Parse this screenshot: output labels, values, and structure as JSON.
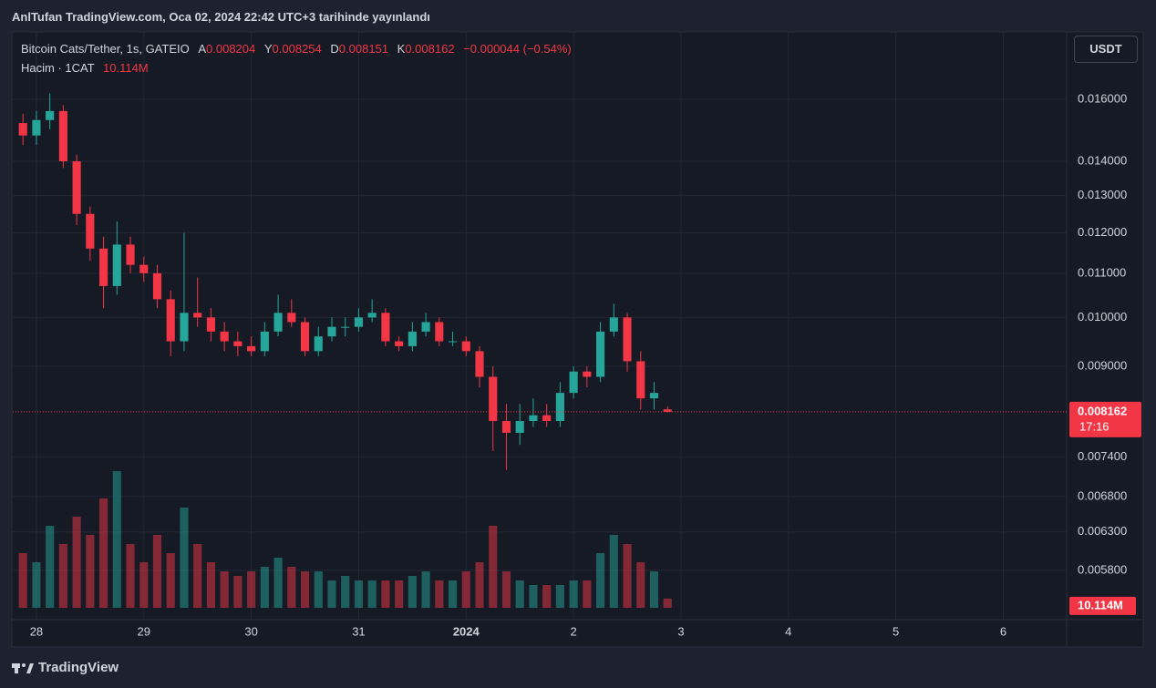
{
  "header": {
    "published": "AnlTufan TradingView.com, Oca 02, 2024 22:42 UTC+3 tarihinde yayınlandı",
    "currency": "USDT",
    "brand": "TradingView"
  },
  "chart_data": {
    "type": "candlestick",
    "symbol": "Bitcoin Cats/Tether, 1s, GATEIO",
    "ohlc_letters": [
      "A",
      "Y",
      "D",
      "K"
    ],
    "change": {
      "value": -4.4e-05,
      "label": "−0.000044"
    },
    "change_percent": {
      "value": -0.54,
      "label": "(−0.54%)"
    },
    "volume_title": "Hacim · 1CAT",
    "volume_label": "10.114M",
    "countdown": "17:16",
    "log_scale": true,
    "grid": true,
    "up_color": "#26a69a",
    "down_color": "#f23645",
    "xlim": [
      -0.22,
      9.59
    ],
    "xticks": [
      {
        "value": 0,
        "label": "28"
      },
      {
        "value": 1,
        "label": "29"
      },
      {
        "value": 2,
        "label": "30"
      },
      {
        "value": 3,
        "label": "31"
      },
      {
        "value": 4,
        "label": "2024"
      },
      {
        "value": 5,
        "label": "2"
      },
      {
        "value": 6,
        "label": "3"
      },
      {
        "value": 7,
        "label": "4"
      },
      {
        "value": 8,
        "label": "5"
      },
      {
        "value": 9,
        "label": "6"
      }
    ],
    "ylim": [
      0.00535,
      0.0185
    ],
    "yticks": [
      {
        "value": 0.016,
        "label": "0.016000"
      },
      {
        "value": 0.014,
        "label": "0.014000"
      },
      {
        "value": 0.013,
        "label": "0.013000"
      },
      {
        "value": 0.012,
        "label": "0.012000"
      },
      {
        "value": 0.011,
        "label": "0.011000"
      },
      {
        "value": 0.01,
        "label": "0.010000"
      },
      {
        "value": 0.009,
        "label": "0.009000"
      },
      {
        "value": 0.0074,
        "label": "0.007400"
      },
      {
        "value": 0.0068,
        "label": "0.006800"
      },
      {
        "value": 0.0063,
        "label": "0.006300"
      },
      {
        "value": 0.0058,
        "label": "0.005800"
      }
    ],
    "x": [
      -0.125,
      0,
      0.125,
      0.25,
      0.375,
      0.5,
      0.625,
      0.75,
      0.875,
      1,
      1.125,
      1.25,
      1.375,
      1.5,
      1.625,
      1.75,
      1.875,
      2,
      2.125,
      2.25,
      2.375,
      2.5,
      2.625,
      2.75,
      2.875,
      3,
      3.125,
      3.25,
      3.375,
      3.5,
      3.625,
      3.75,
      3.875,
      4,
      4.125,
      4.25,
      4.375,
      4.5,
      4.625,
      4.75,
      4.875,
      5,
      5.125,
      5.25,
      5.375,
      5.5,
      5.625,
      5.75,
      5.875
    ],
    "open": [
      0.0152,
      0.0148,
      0.0153,
      0.0156,
      0.014,
      0.0125,
      0.0116,
      0.0107,
      0.0117,
      0.0112,
      0.011,
      0.0104,
      0.0095,
      0.0101,
      0.01,
      0.0097,
      0.0095,
      0.0094,
      0.0093,
      0.0097,
      0.0101,
      0.0099,
      0.0093,
      0.0096,
      0.0098,
      0.0098,
      0.01,
      0.0101,
      0.0095,
      0.0094,
      0.0097,
      0.0099,
      0.0095,
      0.0095,
      0.0093,
      0.0088,
      0.008,
      0.0078,
      0.008,
      0.0081,
      0.008,
      0.0085,
      0.0089,
      0.0088,
      0.0097,
      0.01,
      0.0091,
      0.0084,
      0.008204
    ],
    "high": [
      0.0155,
      0.0156,
      0.0162,
      0.0158,
      0.0142,
      0.0127,
      0.0119,
      0.0123,
      0.0119,
      0.0114,
      0.0112,
      0.0106,
      0.012,
      0.0109,
      0.0102,
      0.0099,
      0.0097,
      0.0096,
      0.0099,
      0.0105,
      0.0104,
      0.01,
      0.0098,
      0.01,
      0.01,
      0.0102,
      0.0104,
      0.0102,
      0.0096,
      0.0099,
      0.0101,
      0.01,
      0.0097,
      0.0096,
      0.0094,
      0.009,
      0.0083,
      0.0083,
      0.0084,
      0.0083,
      0.0087,
      0.009,
      0.009,
      0.0099,
      0.0103,
      0.0101,
      0.0093,
      0.0087,
      0.008254
    ],
    "low": [
      0.0145,
      0.0145,
      0.015,
      0.0138,
      0.0122,
      0.0113,
      0.0102,
      0.0105,
      0.011,
      0.0108,
      0.0102,
      0.0092,
      0.0093,
      0.0098,
      0.0095,
      0.0093,
      0.0092,
      0.0092,
      0.0092,
      0.0096,
      0.0098,
      0.0092,
      0.0092,
      0.0095,
      0.0096,
      0.0097,
      0.0099,
      0.0094,
      0.0093,
      0.0093,
      0.0096,
      0.0094,
      0.0094,
      0.0092,
      0.0086,
      0.0075,
      0.0072,
      0.0076,
      0.0079,
      0.0079,
      0.0079,
      0.0084,
      0.0086,
      0.0087,
      0.0096,
      0.0089,
      0.0082,
      0.0082,
      0.008151
    ],
    "close": [
      0.0148,
      0.0153,
      0.0156,
      0.014,
      0.0125,
      0.0116,
      0.0107,
      0.0117,
      0.0112,
      0.011,
      0.0104,
      0.0095,
      0.0101,
      0.01,
      0.0097,
      0.0095,
      0.0094,
      0.0093,
      0.0097,
      0.0101,
      0.0099,
      0.0093,
      0.0096,
      0.0098,
      0.0098,
      0.01,
      0.0101,
      0.0095,
      0.0094,
      0.0097,
      0.0099,
      0.0095,
      0.0095,
      0.0093,
      0.0088,
      0.008,
      0.0078,
      0.008,
      0.0081,
      0.008,
      0.0085,
      0.0089,
      0.0088,
      0.0097,
      0.01,
      0.0091,
      0.0084,
      0.0085,
      0.008162
    ],
    "volume": [
      60000000,
      50000000,
      90000000,
      70000000,
      100000000,
      80000000,
      120000000,
      150000000,
      70000000,
      50000000,
      80000000,
      60000000,
      110000000,
      70000000,
      50000000,
      40000000,
      35000000,
      40000000,
      45000000,
      55000000,
      45000000,
      40000000,
      40000000,
      30000000,
      35000000,
      30000000,
      30000000,
      30000000,
      30000000,
      35000000,
      40000000,
      30000000,
      30000000,
      40000000,
      50000000,
      90000000,
      40000000,
      30000000,
      25000000,
      25000000,
      25000000,
      30000000,
      30000000,
      60000000,
      80000000,
      70000000,
      50000000,
      40000000,
      10114000
    ]
  }
}
